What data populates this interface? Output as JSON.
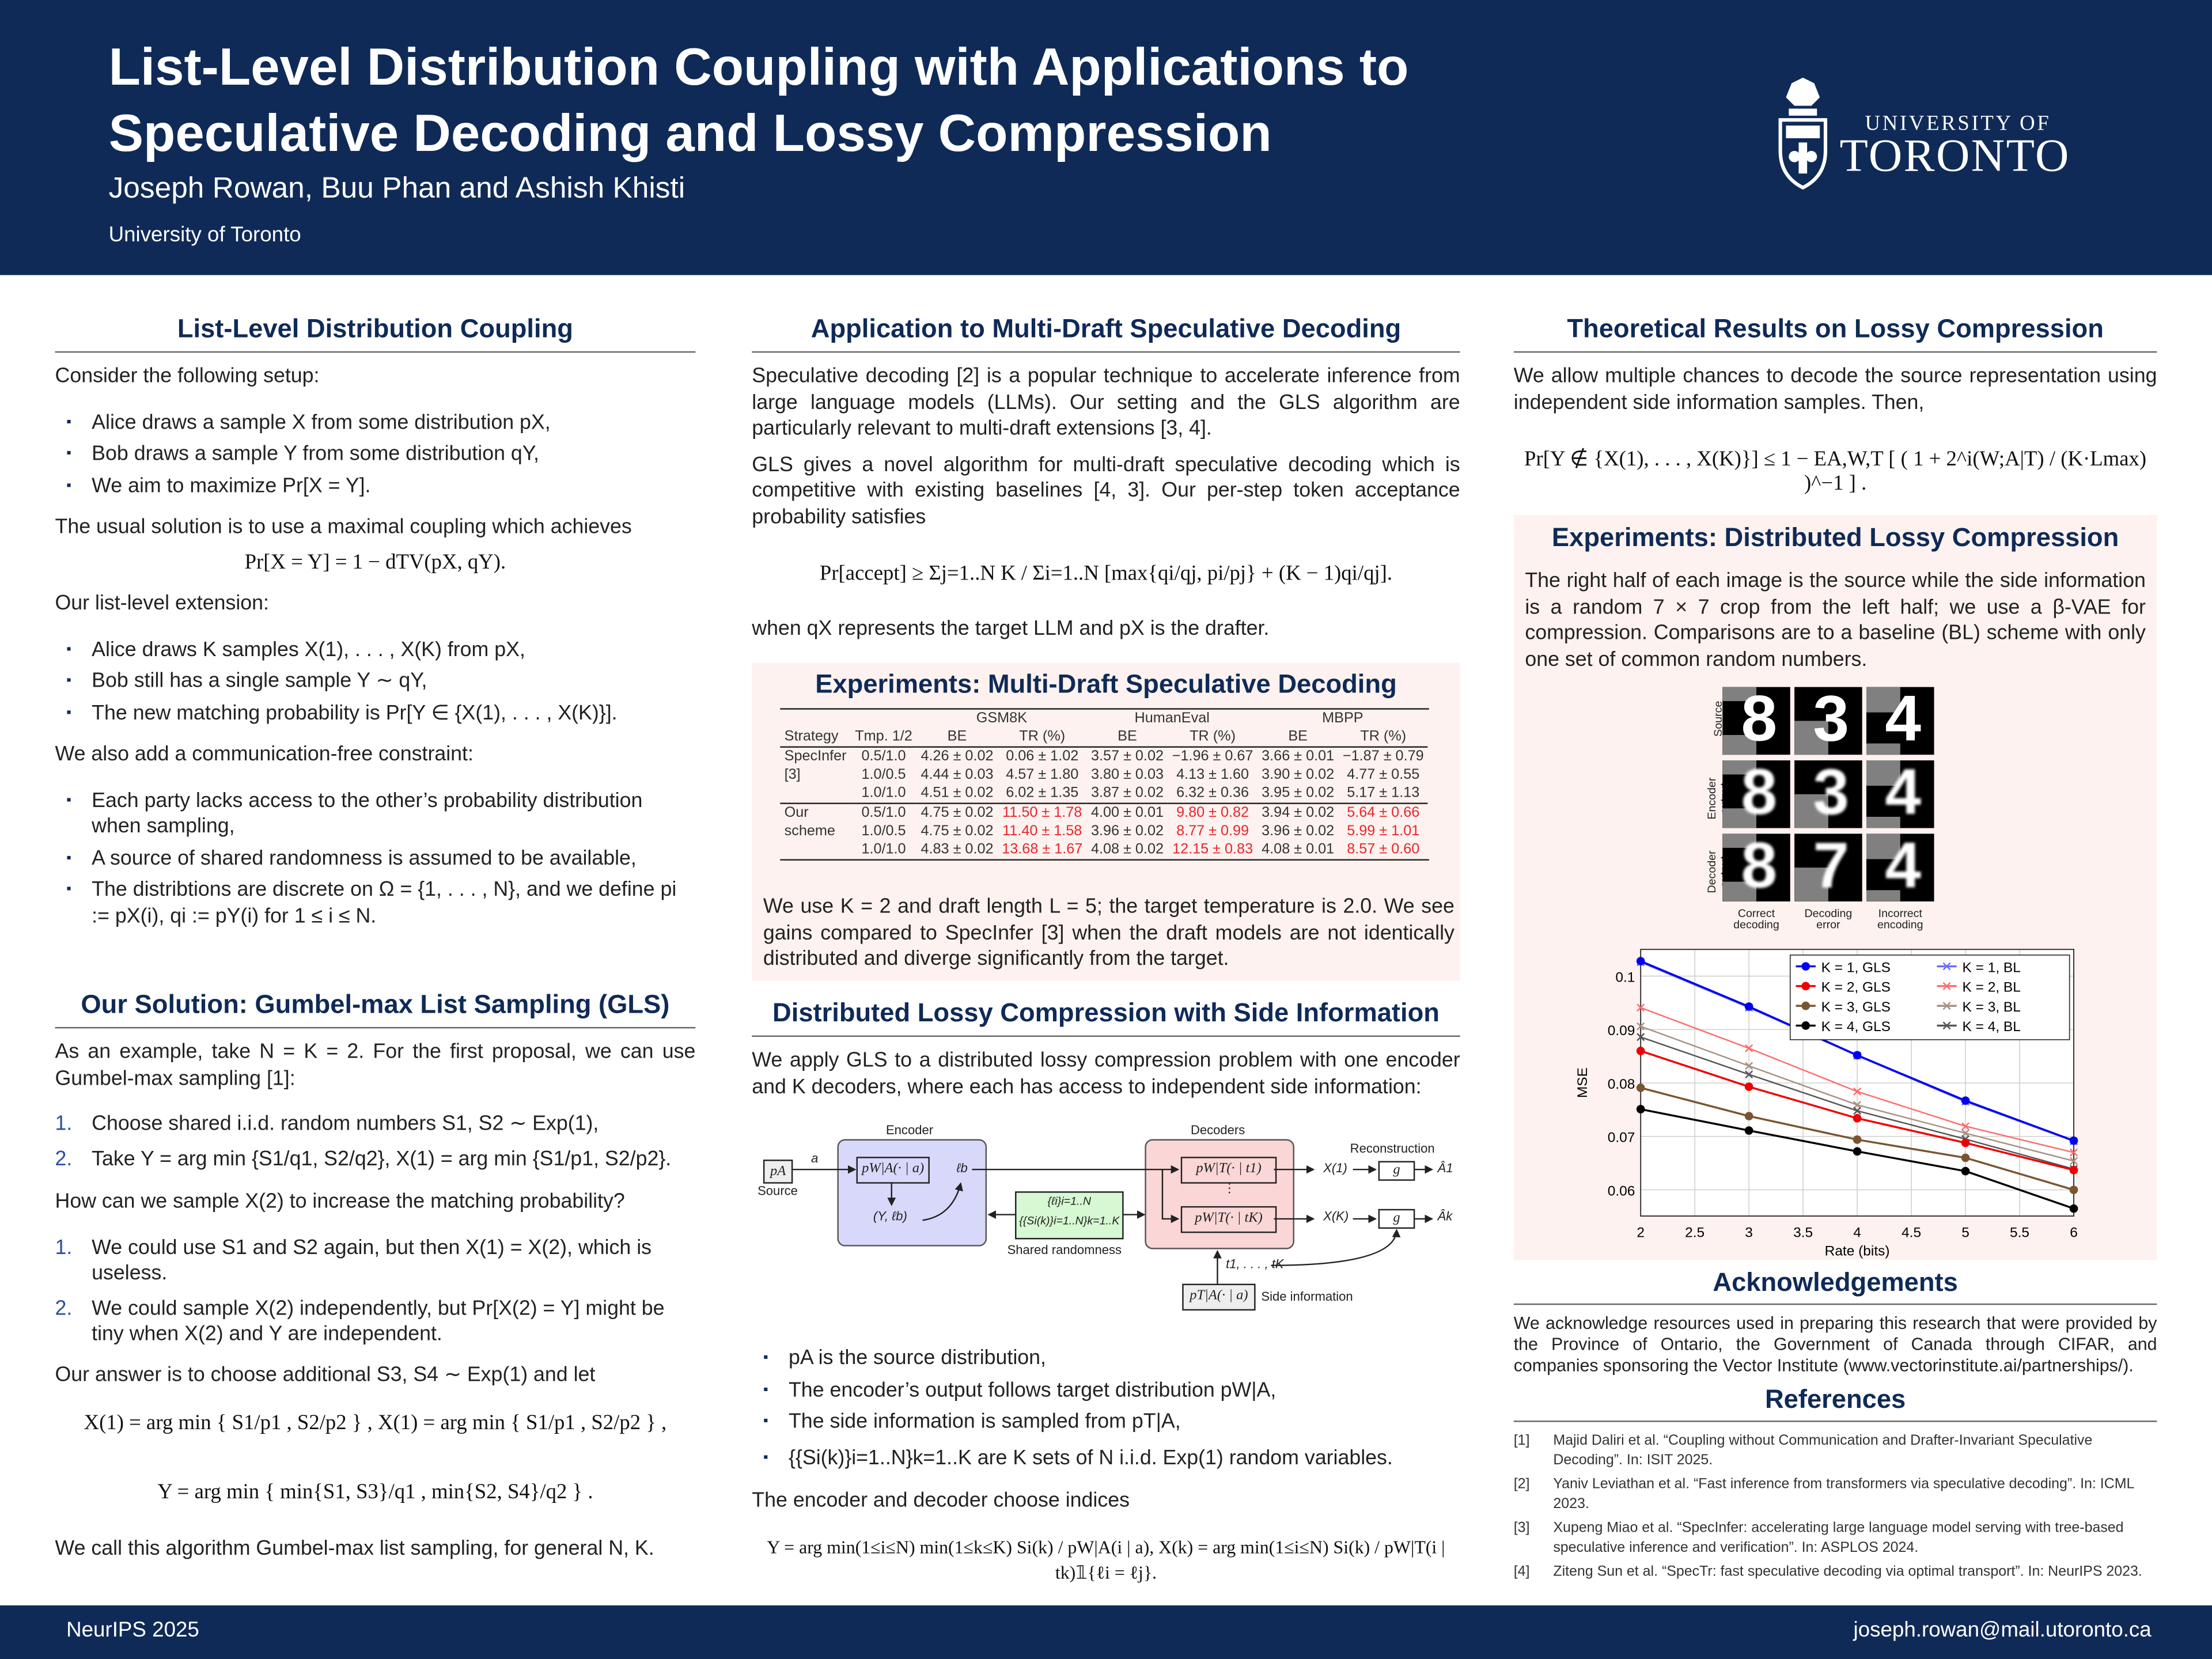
{
  "header": {
    "title_line1": "List-Level Distribution Coupling with Applications to",
    "title_line2": "Speculative Decoding and Lossy Compression",
    "authors": "Joseph Rowan, Buu Phan and Ashish Khisti",
    "affiliation": "University of Toronto",
    "logo_line1": "UNIVERSITY OF",
    "logo_line2": "TORONTO"
  },
  "footer": {
    "venue": "NeurIPS 2025",
    "email": "joseph.rowan@mail.utoronto.ca"
  },
  "col1": {
    "coupling": {
      "heading": "List-Level Distribution Coupling",
      "intro": "Consider the following setup:",
      "setup": [
        "Alice draws a sample X from some distribution pX,",
        "Bob draws a sample Y from some distribution qY,",
        "We aim to maximize Pr[X = Y]."
      ],
      "usual": "The usual solution is to use a maximal coupling which achieves",
      "usual_eq": "Pr[X = Y] = 1 − dTV(pX, qY).",
      "list_intro": "Our list-level extension:",
      "list": [
        "Alice draws K samples X(1), . . . , X(K) from pX,",
        "Bob still has a single sample Y ∼ qY,",
        "The new matching probability is Pr[Y ∈ {X(1), . . . , X(K)}]."
      ],
      "constraint_intro": "We also add a communication-free constraint:",
      "constraints": [
        "Each party lacks access to the other’s probability distribution when sampling,",
        "A source of shared randomness is assumed to be available,",
        "The distribtions are discrete on Ω = {1, . . . , N}, and we define pi := pX(i), qi := pY(i) for 1 ≤ i ≤ N."
      ]
    },
    "gls": {
      "heading": "Our Solution: Gumbel-max List Sampling (GLS)",
      "intro": "As an example, take N = K = 2. For the first proposal, we can use Gumbel-max sampling [1]:",
      "steps": [
        {
          "num": "1.",
          "text": "Choose shared i.i.d. random numbers S1, S2 ∼ Exp(1),"
        },
        {
          "num": "2.",
          "text": "Take Y = arg min {S1/q1, S2/q2}, X(1) = arg min {S1/p1, S2/p2}."
        }
      ],
      "question": "How can we sample X(2) to increase the matching probability?",
      "options": [
        {
          "num": "1.",
          "text": "We could use S1 and S2 again, but then X(1) = X(2), which is useless."
        },
        {
          "num": "2.",
          "text": "We could sample X(2) independently, but Pr[X(2) = Y] might be tiny when X(2) and Y are independent."
        }
      ],
      "answer": "Our answer is to choose additional S3, S4 ∼ Exp(1) and let",
      "eq1": "X(1) = arg min { S1/p1 , S2/p2 } ,   X(1) = arg min { S1/p1 , S2/p2 } ,",
      "eq2": "Y = arg min { min{S1, S3}/q1 , min{S2, S4}/q2 } .",
      "closing": "We call this algorithm Gumbel-max list sampling, for general N, K."
    }
  },
  "col2": {
    "spec": {
      "heading": "Application to Multi-Draft Speculative Decoding",
      "p1": "Speculative decoding [2] is a popular technique to accelerate inference from large language models (LLMs). Our setting and the GLS algorithm are particularly relevant to multi-draft extensions [3, 4].",
      "p2": "GLS gives a novel algorithm for multi-draft speculative decoding which is competitive with existing baselines [4, 3]. Our per-step token acceptance probability satisfies",
      "eq": "Pr[accept] ≥ Σj=1..N  K / Σi=1..N [max{qi/qj, pi/pj} + (K − 1)qi/qj].",
      "after": "when qX represents the target LLM and pX is the drafter."
    },
    "exp": {
      "heading": "Experiments: Multi-Draft Speculative Decoding",
      "table": {
        "groups": [
          "GSM8K",
          "HumanEval",
          "MBPP"
        ],
        "columns": [
          "Strategy",
          "Tmp. 1/2",
          "BE",
          "TR (%)",
          "BE",
          "TR (%)",
          "BE",
          "TR (%)"
        ],
        "blocks": [
          {
            "strategy": [
              "SpecInfer",
              "[3]"
            ],
            "rows": [
              [
                "0.5/1.0",
                "4.26 ± 0.02",
                "0.06 ± 1.02",
                "3.57 ± 0.02",
                "−1.96 ± 0.67",
                "3.66 ± 0.01",
                "−1.87 ± 0.79"
              ],
              [
                "1.0/0.5",
                "4.44 ± 0.03",
                "4.57 ± 1.80",
                "3.80 ± 0.03",
                "4.13 ± 1.60",
                "3.90 ± 0.02",
                "4.77 ± 0.55"
              ],
              [
                "1.0/1.0",
                "4.51 ± 0.02",
                "6.02 ± 1.35",
                "3.87 ± 0.02",
                "6.32 ± 0.36",
                "3.95 ± 0.02",
                "5.17 ± 1.13"
              ]
            ]
          },
          {
            "strategy": [
              "Our",
              "scheme"
            ],
            "rows": [
              [
                "0.5/1.0",
                "4.75 ± 0.02",
                "11.50 ± 1.78",
                "4.00 ± 0.01",
                "9.80 ± 0.82",
                "3.94 ± 0.02",
                "5.64 ± 0.66"
              ],
              [
                "1.0/0.5",
                "4.75 ± 0.02",
                "11.40 ± 1.58",
                "3.96 ± 0.02",
                "8.77 ± 0.99",
                "3.96 ± 0.02",
                "5.99 ± 1.01"
              ],
              [
                "1.0/1.0",
                "4.83 ± 0.02",
                "13.68 ± 1.67",
                "4.08 ± 0.02",
                "12.15 ± 0.83",
                "4.08 ± 0.01",
                "8.57 ± 0.60"
              ]
            ]
          }
        ],
        "highlight_color": "#e8262b"
      },
      "note": "We use K = 2 and draft length L = 5; the target temperature is 2.0. We see gains compared to SpecInfer [3] when the draft models are not identically distributed and diverge significantly from the target."
    },
    "dlc": {
      "heading": "Distributed Lossy Compression with Side Information",
      "intro": "We apply GLS to a distributed lossy compression problem with one encoder and K decoders, where each has access to independent side information:",
      "diagram": {
        "encoder": "Encoder",
        "decoders": "Decoders",
        "reconstruction": "Reconstruction",
        "source_box": "pA",
        "source": "Source",
        "a": "a",
        "enc_box": "pW|A(· | a)",
        "lb": "ℓb",
        "y_lb": "(Y, ℓb)",
        "shared_1": "{ℓi}i=1..N",
        "shared_2": "{{Si(k)}i=1..N}k=1..K",
        "shared": "Shared randomness",
        "dec_box_1": "pW|T(· | t1)",
        "dec_box_k": "pW|T(· | tK)",
        "dots": "⋮",
        "x1": "X(1)",
        "xk": "X(K)",
        "g": "g",
        "a1": "Â1",
        "ak": "Âk",
        "t": "t1, . . . , tK",
        "side_box": "pT|A(· | a)",
        "side": "Side information"
      },
      "bullets": [
        "pA is the source distribution,",
        "The encoder’s output follows target distribution pW|A,",
        "The side information is sampled from pT|A,",
        "{{Si(k)}i=1..N}k=1..K are K sets of N i.i.d. Exp(1) random variables."
      ],
      "choose": "The encoder and decoder choose indices",
      "eq": "Y = arg min(1≤i≤N) min(1≤k≤K) Si(k) / pW|A(i | a),   X(k) = arg min(1≤i≤N) Si(k) / pW|T(i | tk)𝟙{ℓi = ℓj}."
    }
  },
  "col3": {
    "theory": {
      "heading": "Theoretical Results on Lossy Compression",
      "p": "We allow multiple chances to decode the source representation using independent side information samples. Then,",
      "eq": "Pr[Y ∉ {X(1), . . . , X(K)}] ≤ 1 − EA,W,T [ ( 1 + 2^i(W;A|T) / (K·Lmax) )^−1 ] ."
    },
    "exp": {
      "heading": "Experiments: Distributed Lossy Compression",
      "p": "The right half of each image is the source while the side information is a random 7 × 7 crop from the left half; we use a β-VAE for compression. Comparisons are to a baseline (BL) scheme with only one set of common random numbers.",
      "grid": {
        "row_labels": [
          "Source",
          "Encoder output",
          "Decoder output"
        ],
        "col_labels": [
          "Correct decoding",
          "Decoding error",
          "Incorrect encoding"
        ],
        "digits": [
          [
            "8",
            "3",
            "4"
          ],
          [
            "8",
            "3",
            "4"
          ],
          [
            "8",
            "7",
            "4"
          ]
        ]
      }
    },
    "ack": {
      "heading": "Acknowledgements",
      "p": "We acknowledge resources used in preparing this research that were provided by the Province of Ontario, the Government of Canada through CIFAR, and companies sponsoring the Vector Institute (www.vectorinstitute.ai/partnerships/)."
    },
    "refs": {
      "heading": "References",
      "items": [
        {
          "key": "[1]",
          "text": "Majid Daliri et al. “Coupling without Communication and Drafter-Invariant Speculative Decoding”. In: ISIT 2025."
        },
        {
          "key": "[2]",
          "text": "Yaniv Leviathan et al. “Fast inference from transformers via speculative decoding”. In: ICML 2023."
        },
        {
          "key": "[3]",
          "text": "Xupeng Miao et al. “SpecInfer: accelerating large language model serving with tree-based speculative inference and verification”. In: ASPLOS 2024."
        },
        {
          "key": "[4]",
          "text": "Ziteng Sun et al. “SpecTr: fast speculative decoding via optimal transport”. In: NeurIPS 2023."
        }
      ]
    }
  },
  "chart_data": {
    "type": "line",
    "xlabel": "Rate (bits)",
    "ylabel": "MSE",
    "x": [
      2,
      3,
      4,
      5,
      6
    ],
    "xlim": [
      2,
      6
    ],
    "ylim": [
      0.0551,
      0.105
    ],
    "xticks": [
      "2",
      "2.5",
      "3",
      "3.5",
      "4",
      "4.5",
      "5",
      "5.5",
      "6"
    ],
    "yticks": [
      "0.06",
      "0.07",
      "0.08",
      "0.09",
      "0.1"
    ],
    "grid": true,
    "legend_position": "top-right",
    "series": [
      {
        "name": "K = 1, GLS",
        "color": "#0000ee",
        "marker": "dot",
        "values": [
          0.1028,
          0.0943,
          0.0852,
          0.0767,
          0.0692
        ]
      },
      {
        "name": "K = 1, BL",
        "color": "#6a6aff",
        "marker": "x",
        "values": [
          0.1026,
          0.0941,
          0.0851,
          0.0765,
          0.0691
        ]
      },
      {
        "name": "K = 2, GLS",
        "color": "#ee0000",
        "marker": "dot",
        "values": [
          0.086,
          0.0793,
          0.0734,
          0.0688,
          0.0637
        ]
      },
      {
        "name": "K = 2, BL",
        "color": "#ff6b6b",
        "marker": "x",
        "values": [
          0.0941,
          0.0865,
          0.0784,
          0.0719,
          0.067
        ]
      },
      {
        "name": "K = 3, GLS",
        "color": "#7a5430",
        "marker": "dot",
        "values": [
          0.0791,
          0.0738,
          0.0694,
          0.066,
          0.06
        ]
      },
      {
        "name": "K = 3, BL",
        "color": "#a89080",
        "marker": "x",
        "values": [
          0.0906,
          0.0832,
          0.0759,
          0.0706,
          0.0654
        ]
      },
      {
        "name": "K = 4, GLS",
        "color": "#000000",
        "marker": "dot",
        "values": [
          0.0751,
          0.0711,
          0.0672,
          0.0635,
          0.0565
        ]
      },
      {
        "name": "K = 4, BL",
        "color": "#555555",
        "marker": "x",
        "values": [
          0.0886,
          0.0816,
          0.0748,
          0.0695,
          0.0639
        ]
      }
    ]
  }
}
